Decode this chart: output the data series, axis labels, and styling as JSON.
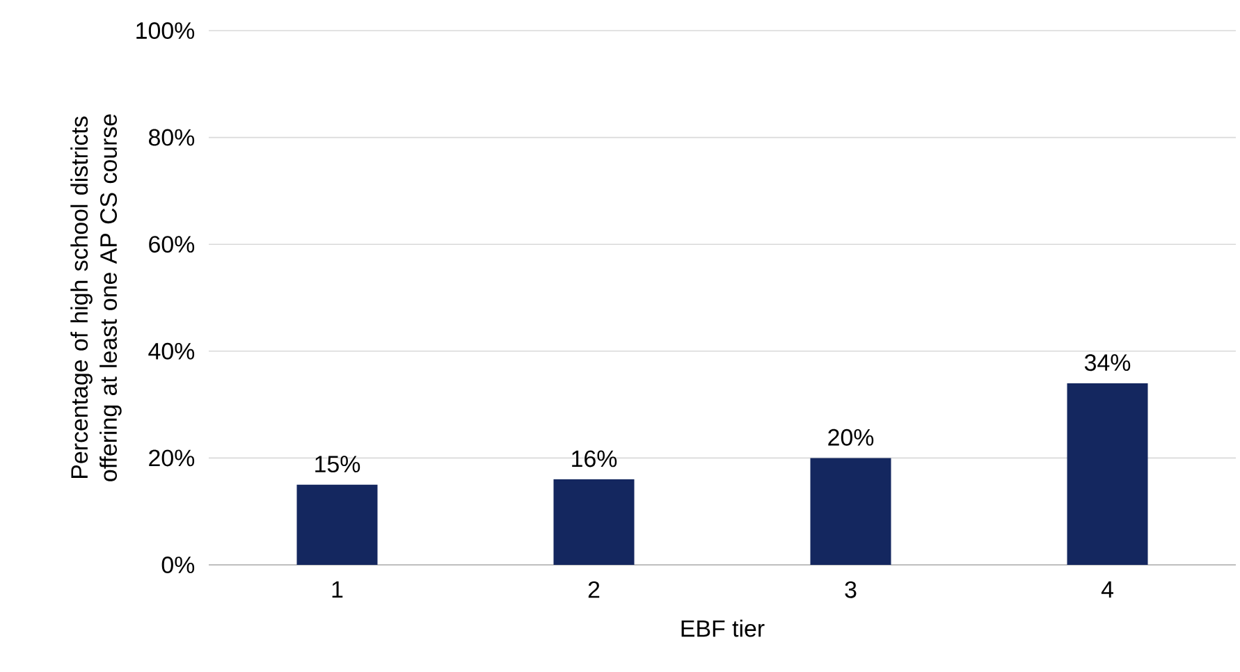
{
  "chart_data": {
    "type": "bar",
    "xlabel": "EBF tier",
    "ylabel": "Percentage of high school districts offering at least one AP CS course",
    "categories": [
      "1",
      "2",
      "3",
      "4"
    ],
    "values": [
      15,
      16,
      20,
      34
    ],
    "value_labels": [
      "15%",
      "16%",
      "20%",
      "34%"
    ],
    "color": "#14275f",
    "ylim": [
      0,
      100
    ],
    "yticks": [
      {
        "value": 0,
        "label": "0%"
      },
      {
        "value": 20,
        "label": "20%"
      },
      {
        "value": 40,
        "label": "40%"
      },
      {
        "value": 60,
        "label": "60%"
      },
      {
        "value": 80,
        "label": "80%"
      },
      {
        "value": 100,
        "label": "100%"
      }
    ],
    "grid": "y"
  }
}
